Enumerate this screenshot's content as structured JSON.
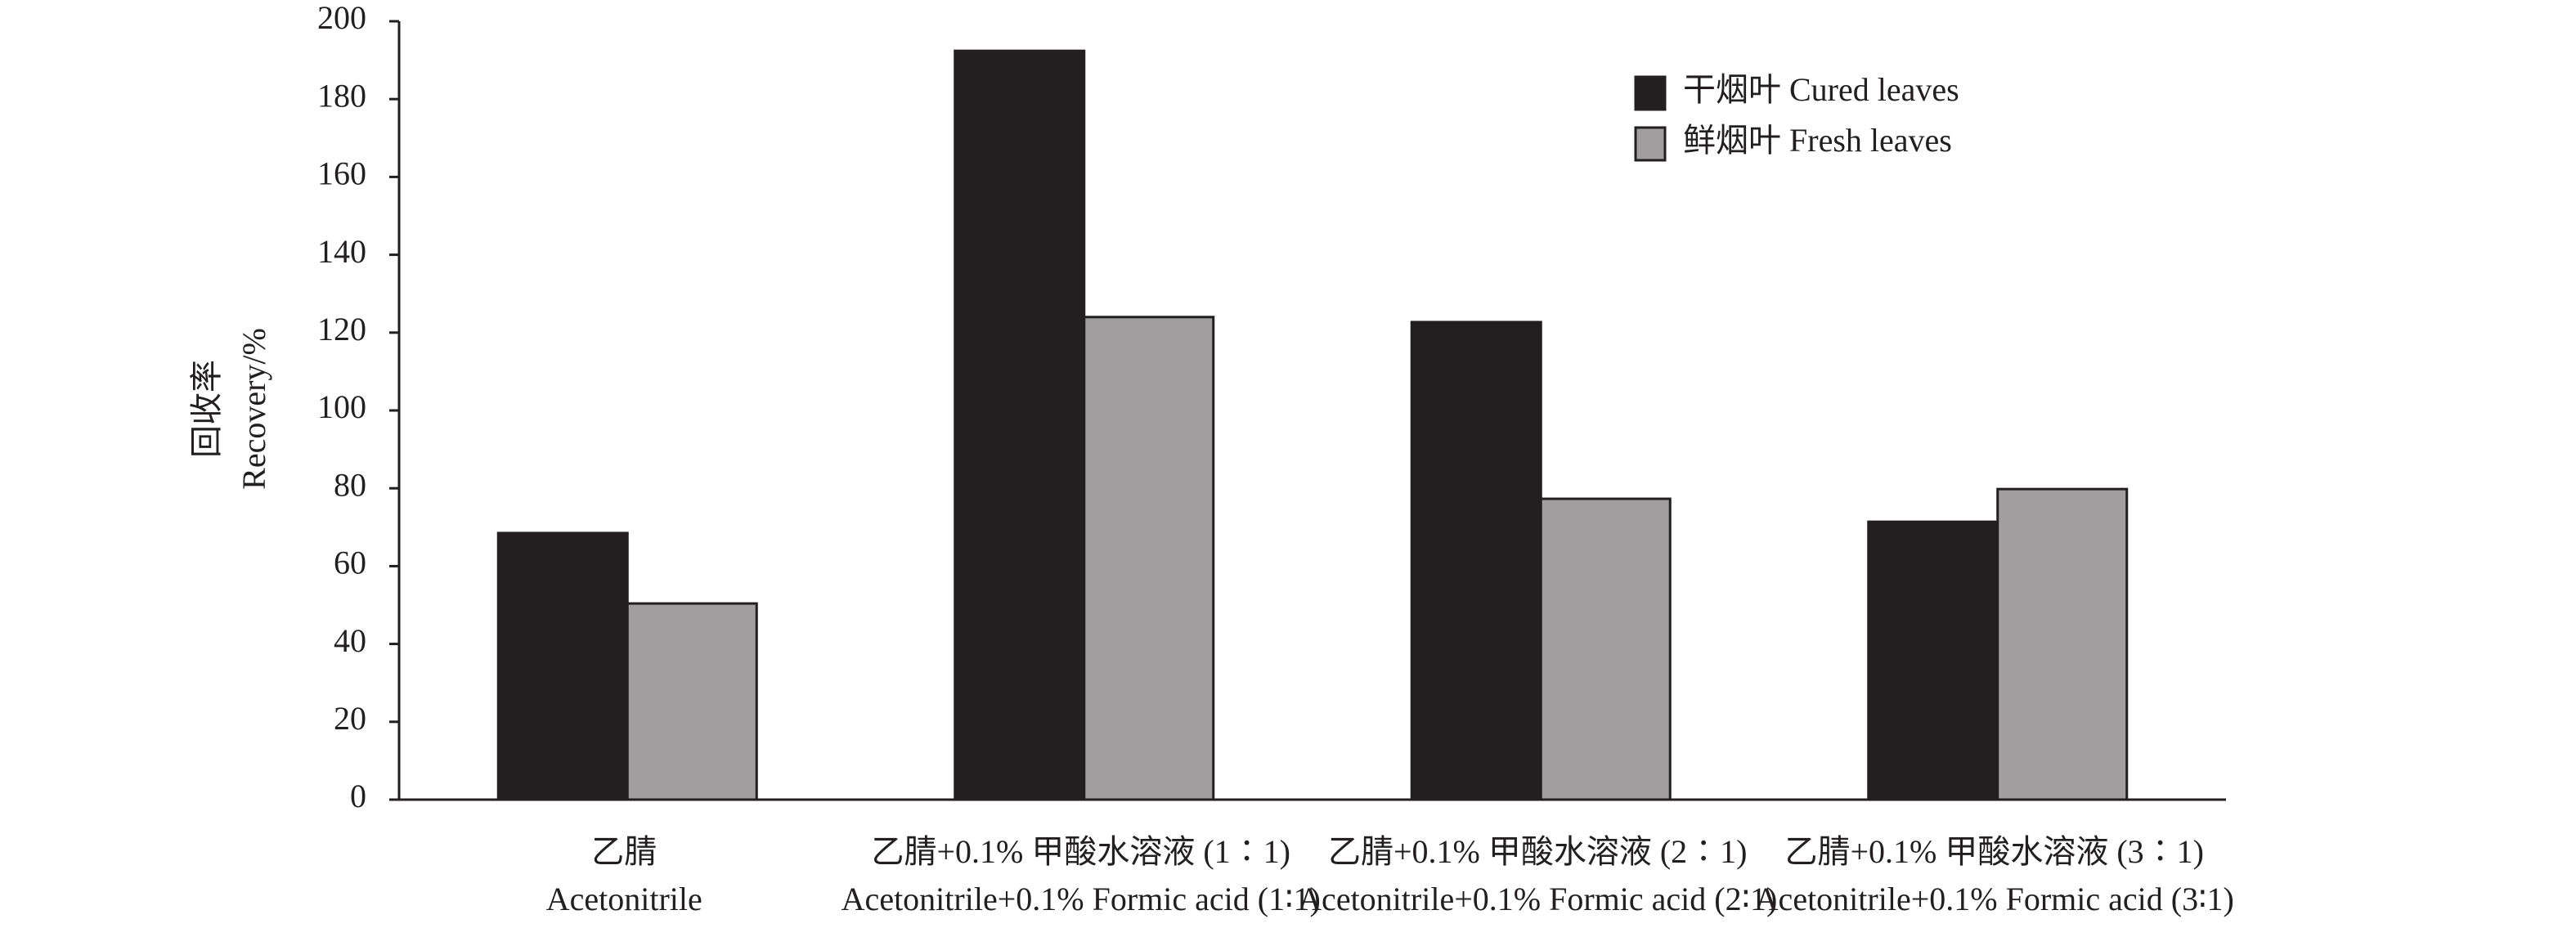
{
  "chart_data": {
    "type": "bar",
    "ylabel": [
      "回收率",
      "Recovery/%"
    ],
    "categories": [
      [
        "乙腈",
        "Acetonitrile"
      ],
      [
        "乙腈+0.1% 甲酸水溶液 (1∶1)",
        "Acetonitrile+0.1% Formic acid (1∶1)"
      ],
      [
        "乙腈+0.1% 甲酸水溶液 (2∶1)",
        "Acetonitrile+0.1% Formic acid (2∶1)"
      ],
      [
        "乙腈+0.1% 甲酸水溶液 (3∶1)",
        "Acetonitrile+0.1% Formic acid (3∶1)"
      ]
    ],
    "series": [
      {
        "name": "干烟叶 Cured leaves",
        "color": "#231f20",
        "values": [
          68.5,
          192.4,
          122.7,
          71.4
        ]
      },
      {
        "name": "鲜烟叶 Fresh leaves",
        "color": "#a09e9f",
        "values": [
          50.4,
          124,
          77.3,
          79.8
        ]
      }
    ],
    "ylim": [
      0,
      200
    ],
    "yticks": [
      0,
      20,
      40,
      60,
      80,
      100,
      120,
      140,
      160,
      180,
      200
    ],
    "legend": "top-right"
  }
}
